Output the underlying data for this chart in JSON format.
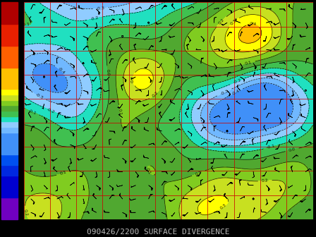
{
  "title": "090426/2200 SURFACE DIVERGENCE",
  "title_fontsize": 8,
  "title_color": "#bbbbbb",
  "background_color": "#000000",
  "levels": [
    -2.0,
    -1.6,
    -1.2,
    -1.0,
    -0.8,
    -0.4,
    -0.3,
    -0.2,
    -0.1,
    0.0,
    0.1,
    0.2,
    0.3,
    0.4,
    0.8,
    1.2,
    1.6,
    2.0
  ],
  "cmap_colors": [
    "#7000c0",
    "#0000d0",
    "#0028e0",
    "#0050f0",
    "#4090f8",
    "#70b8ff",
    "#90ccff",
    "#20e0c0",
    "#40c050",
    "#50a830",
    "#80cc20",
    "#c8e020",
    "#ffff00",
    "#ffc000",
    "#ff6000",
    "#e82000",
    "#b00000",
    "#600000"
  ],
  "figsize": [
    4.48,
    3.36
  ],
  "dpi": 100
}
